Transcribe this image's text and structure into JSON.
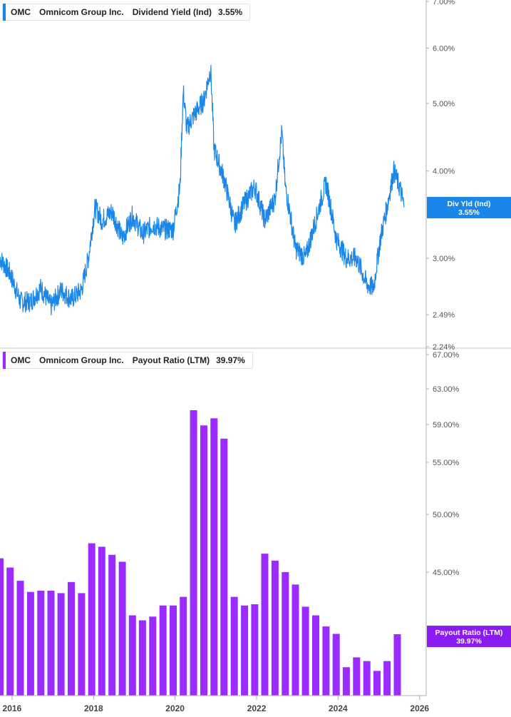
{
  "colors": {
    "yield": "#1a86e8",
    "payout": "#9b2bff",
    "badge_yield": "#1a86e8",
    "badge_payout": "#8a1cf2"
  },
  "top_legend": {
    "ticker": "OMC",
    "company": "Omnicom Group Inc.",
    "metric": "Dividend Yield (Ind)",
    "value": "3.55%"
  },
  "bottom_legend": {
    "ticker": "OMC",
    "company": "Omnicom Group Inc.",
    "metric": "Payout Ratio (LTM)",
    "value": "39.97%"
  },
  "top_badge": {
    "label": "Div Yld (Ind)",
    "value": "3.55%"
  },
  "bottom_badge": {
    "label": "Payout Ratio (LTM)",
    "value": "39.97%"
  },
  "chart_data": [
    {
      "type": "line",
      "series": [
        {
          "name": "Dividend Yield (Ind)",
          "x": [
            "2015-09",
            "2015-12",
            "2016-03",
            "2016-06",
            "2016-09",
            "2016-12",
            "2017-03",
            "2017-06",
            "2017-09",
            "2017-11",
            "2018-01",
            "2018-03",
            "2018-06",
            "2018-09",
            "2018-12",
            "2019-03",
            "2019-06",
            "2019-09",
            "2019-12",
            "2020-02",
            "2020-03",
            "2020-04",
            "2020-06",
            "2020-09",
            "2020-11",
            "2020-12",
            "2021-03",
            "2021-06",
            "2021-09",
            "2021-12",
            "2022-03",
            "2022-06",
            "2022-08",
            "2022-09",
            "2022-12",
            "2023-03",
            "2023-06",
            "2023-09",
            "2023-12",
            "2024-03",
            "2024-06",
            "2024-09",
            "2024-11",
            "2025-01",
            "2025-03",
            "2025-05",
            "2025-07",
            "2025-08"
          ],
          "values": [
            3.0,
            2.85,
            2.6,
            2.6,
            2.72,
            2.56,
            2.7,
            2.62,
            2.7,
            3.0,
            3.55,
            3.4,
            3.5,
            3.2,
            3.45,
            3.25,
            3.35,
            3.3,
            3.3,
            3.8,
            5.2,
            4.6,
            4.8,
            5.05,
            5.6,
            4.3,
            3.9,
            3.35,
            3.6,
            3.8,
            3.4,
            3.65,
            4.55,
            3.8,
            3.1,
            3.0,
            3.4,
            3.85,
            3.2,
            3.0,
            3.0,
            2.75,
            2.72,
            3.2,
            3.55,
            4.0,
            3.75,
            3.55
          ],
          "color": "#1a86e8"
        }
      ],
      "yscale": "log",
      "ylim": [
        2.24,
        7.0
      ],
      "y_ticks": [
        "7.00%",
        "6.00%",
        "5.00%",
        "4.00%",
        "3.00%",
        "2.49%",
        "2.24%"
      ],
      "y_tick_values": [
        7.0,
        6.0,
        5.0,
        4.0,
        3.0,
        2.49,
        2.24
      ],
      "xlim": [
        "2015-09-15",
        "2026-03-01"
      ]
    },
    {
      "type": "bar",
      "series": [
        {
          "name": "Payout Ratio (LTM)",
          "x": [
            "2015-09",
            "2015-12",
            "2016-03",
            "2016-06",
            "2016-09",
            "2016-12",
            "2017-03",
            "2017-06",
            "2017-09",
            "2017-12",
            "2018-03",
            "2018-06",
            "2018-09",
            "2018-12",
            "2019-03",
            "2019-06",
            "2019-09",
            "2019-12",
            "2020-03",
            "2020-06",
            "2020-09",
            "2020-12",
            "2021-03",
            "2021-06",
            "2021-09",
            "2021-12",
            "2022-03",
            "2022-06",
            "2022-09",
            "2022-12",
            "2023-03",
            "2023-06",
            "2023-09",
            "2023-12",
            "2024-03",
            "2024-06",
            "2024-09",
            "2024-12",
            "2025-03",
            "2025-06"
          ],
          "values": [
            46.2,
            45.4,
            44.3,
            43.4,
            43.5,
            43.5,
            43.3,
            44.2,
            43.3,
            47.5,
            47.2,
            46.5,
            45.9,
            41.5,
            41.1,
            41.4,
            42.3,
            42.3,
            43.0,
            60.6,
            58.9,
            59.7,
            57.5,
            43.0,
            42.3,
            42.4,
            46.6,
            46.0,
            45.0,
            44.0,
            42.2,
            41.5,
            40.6,
            40.0,
            37.3,
            38.1,
            37.8,
            37.0,
            37.8,
            39.97
          ],
          "color": "#9b2bff"
        }
      ],
      "ylim": [
        35.0,
        67.0
      ],
      "y_ticks": [
        "67.00%",
        "63.00%",
        "59.00%",
        "55.00%",
        "50.00%",
        "45.00%"
      ],
      "y_tick_values": [
        67.0,
        63.0,
        59.0,
        55.0,
        50.0,
        45.0
      ]
    }
  ],
  "x_axis": {
    "labels": [
      "2016",
      "2018",
      "2020",
      "2022",
      "2024",
      "2026"
    ]
  }
}
